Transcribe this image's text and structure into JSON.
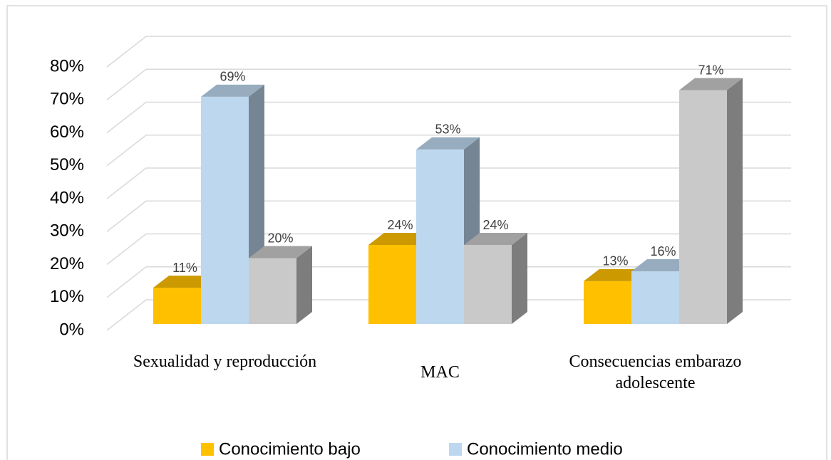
{
  "chart_data": {
    "type": "bar3d",
    "categories": [
      "Sexualidad y reproducción",
      "MAC",
      "Consecuencias embarazo adolescente"
    ],
    "series": [
      {
        "name": "Conocimiento bajo",
        "color": "#ffc000",
        "values": [
          11,
          24,
          13
        ],
        "value_labels": [
          "11%",
          "24%",
          "13%"
        ]
      },
      {
        "name": "Conocimiento medio",
        "color": "#bdd7ee",
        "values": [
          69,
          53,
          16
        ],
        "value_labels": [
          "69%",
          "53%",
          "16%"
        ]
      },
      {
        "color": "#c9c9c9",
        "values": [
          20,
          24,
          71
        ],
        "value_labels": [
          "20%",
          "24%",
          "71%"
        ]
      }
    ],
    "ylim": [
      0,
      80
    ],
    "yticks": [
      {
        "value": 0,
        "label": "0%"
      },
      {
        "value": 10,
        "label": "10%"
      },
      {
        "value": 20,
        "label": "20%"
      },
      {
        "value": 30,
        "label": "30%"
      },
      {
        "value": 40,
        "label": "40%"
      },
      {
        "value": 50,
        "label": "50%"
      },
      {
        "value": 60,
        "label": "60%"
      },
      {
        "value": 70,
        "label": "70%"
      },
      {
        "value": 80,
        "label": "80%"
      }
    ],
    "grid": true,
    "legend": "bottom"
  }
}
